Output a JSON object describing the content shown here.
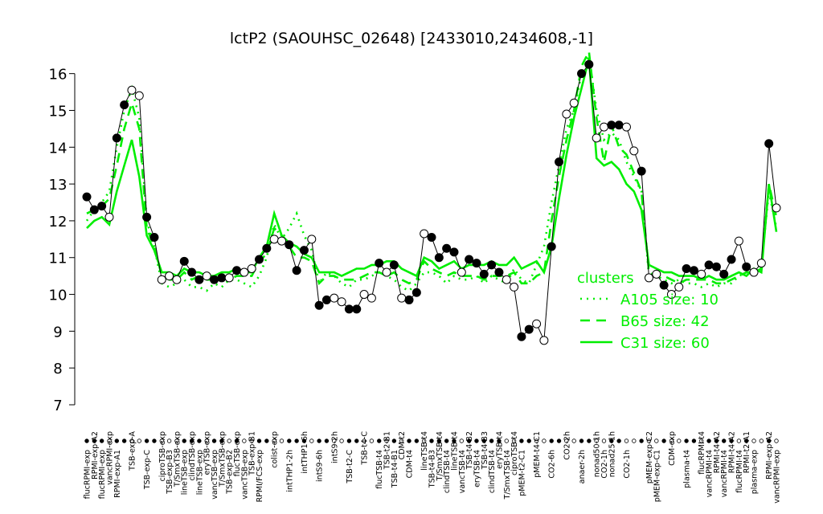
{
  "chart_data": {
    "type": "line",
    "title": "lctP2 (SAOUHSC_02648) [2433010,2434608,-1]",
    "categories": [
      "flucRPMI-exp",
      "RPMI-exp-A2",
      "flucRPMI-exp",
      "vancRPMI-exp",
      "RPMI-exp-A1",
      null,
      "TSB-exp-A",
      null,
      "TSB-exp-C",
      null,
      "ciproTSB-exp",
      "TSB-exp-B3",
      "T/SmxTSB-exp",
      "lineTSB-exp",
      "clindTSB-exp",
      "lineTSB-exp",
      "eryTSB-exp",
      "vancTSB-exp",
      "T/SmxTSB-exp",
      "TSB-exp-B2",
      "flucTSB-exp",
      "vancTSB-exp",
      "TSB-exp-B1",
      "RPMI/FCS-exp",
      null,
      "colist-exp",
      null,
      "intTHP1-2h",
      null,
      "intTHP1-6h",
      null,
      "intS9-6h",
      null,
      "intS9-2h",
      null,
      "TSB-t2-C",
      null,
      "TSB-t4-C",
      null,
      "flucTSB-t4",
      "TSB-t2-B1",
      "TSB-t4-B1",
      "CDM-t2",
      "CDM-t4",
      null,
      "lineTSB-t4",
      "TSB-t4-B3",
      "T/SmxTSB-t4",
      "clindTSB-t4",
      "lineTSB-t4",
      "vancTSB-t4",
      "TSB-t4-B2",
      "eryTSB-t4",
      "TSB-t4-B3",
      "clindTSB-t4",
      "eryTSB-t4",
      "T/SmxTSB-t4",
      "ciproTSB-t4",
      "pMEM-t2-C1",
      null,
      "pMEM-t4-C1",
      null,
      "CO2-6h",
      null,
      "CO2-2h",
      null,
      "anaer-2h",
      null,
      "nonad50-1h",
      "CO2-1h",
      "nonad25-1h",
      null,
      "CO2-1h",
      null,
      null,
      "pMEM-exp-C2",
      "pMEM-exp-C1",
      null,
      "CDM-exp",
      null,
      "plasma-t4",
      null,
      "flucRPMI-t4",
      "vancRPMI-t4",
      "RPMI-t4-A2",
      "vancRPMI-t4",
      "RPMI-t4-A2",
      "flucRPMI-t4",
      "RPMI-t2-A1",
      "plasma-exp",
      null,
      "RPMI-exp-A2",
      "vancRPMI-exp"
    ],
    "series": [
      {
        "color": "#000000",
        "linestyle": "solid",
        "values": [
          12.65,
          12.3,
          12.4,
          12.1,
          14.25,
          15.15,
          15.55,
          15.4,
          12.1,
          11.55,
          10.4,
          10.5,
          10.4,
          10.9,
          10.6,
          10.4,
          10.5,
          10.4,
          10.45,
          10.45,
          10.65,
          10.6,
          10.7,
          10.95,
          11.25,
          11.5,
          11.45,
          11.35,
          10.65,
          11.2,
          11.5,
          9.7,
          9.85,
          9.9,
          9.8,
          9.6,
          9.6,
          10.0,
          9.9,
          10.85,
          10.6,
          10.8,
          9.9,
          9.85,
          10.05,
          11.65,
          11.55,
          11.0,
          11.25,
          11.15,
          10.6,
          10.95,
          10.85,
          10.55,
          10.8,
          10.6,
          10.4,
          10.2,
          8.85,
          9.05,
          9.2,
          8.75,
          11.3,
          13.6,
          14.9,
          15.2,
          16.0,
          16.25,
          14.25,
          14.55,
          14.6,
          14.6,
          14.55,
          13.9,
          13.35,
          10.45,
          10.55,
          10.25,
          10.0,
          10.2,
          10.7,
          10.65,
          10.55,
          10.8,
          10.75,
          10.55,
          10.95,
          11.45,
          10.75,
          10.6,
          10.85,
          14.1,
          12.35
        ],
        "filled": [
          true,
          true,
          true,
          false,
          true,
          true,
          false,
          false,
          true,
          true,
          false,
          false,
          false,
          true,
          true,
          true,
          false,
          true,
          true,
          false,
          true,
          false,
          false,
          true,
          true,
          false,
          false,
          true,
          true,
          true,
          false,
          true,
          true,
          false,
          false,
          true,
          true,
          false,
          false,
          true,
          false,
          true,
          false,
          true,
          true,
          false,
          true,
          true,
          true,
          true,
          false,
          true,
          true,
          true,
          true,
          true,
          false,
          false,
          true,
          true,
          false,
          false,
          true,
          true,
          false,
          false,
          true,
          true,
          false,
          false,
          true,
          true,
          false,
          false,
          true,
          false,
          false,
          true,
          false,
          false,
          true,
          true,
          false,
          true,
          true,
          true,
          true,
          false,
          true,
          false,
          false,
          true,
          false
        ]
      },
      {
        "name": "A105 size: 10",
        "color": "#00ee00",
        "linestyle": "dotted",
        "values": [
          12.0,
          12.3,
          12.5,
          12.8,
          14.0,
          15.0,
          15.6,
          14.8,
          12.0,
          11.3,
          10.3,
          10.2,
          10.3,
          10.4,
          10.2,
          10.2,
          10.1,
          10.3,
          10.2,
          10.4,
          10.4,
          10.3,
          10.2,
          10.5,
          11.0,
          11.9,
          11.5,
          11.8,
          12.2,
          11.6,
          11.2,
          10.3,
          10.6,
          10.5,
          10.3,
          10.2,
          10.4,
          10.4,
          10.5,
          10.6,
          10.5,
          10.4,
          10.2,
          10.1,
          10.3,
          10.6,
          10.6,
          10.5,
          10.3,
          10.5,
          10.4,
          10.4,
          10.5,
          10.3,
          10.5,
          10.4,
          10.3,
          10.7,
          10.4,
          10.3,
          10.8,
          11.3,
          12.5,
          13.5,
          14.5,
          15.0,
          16.0,
          16.5,
          15.0,
          14.2,
          14.4,
          14.2,
          13.6,
          13.2,
          12.8,
          10.5,
          10.5,
          10.4,
          10.3,
          10.4,
          10.3,
          10.3,
          10.2,
          10.3,
          10.2,
          10.3,
          10.3,
          10.5,
          10.6,
          10.5,
          10.8,
          12.8,
          11.8
        ]
      },
      {
        "name": "B65 size: 42",
        "color": "#00ee00",
        "linestyle": "dashed",
        "values": [
          12.2,
          12.3,
          12.4,
          12.6,
          13.5,
          14.5,
          15.2,
          14.5,
          11.8,
          11.3,
          10.5,
          10.4,
          10.4,
          10.6,
          10.4,
          10.5,
          10.4,
          10.4,
          10.5,
          10.4,
          10.5,
          10.5,
          10.5,
          10.9,
          11.1,
          11.8,
          11.6,
          11.3,
          11.0,
          11.0,
          10.9,
          10.3,
          10.5,
          10.5,
          10.4,
          10.4,
          10.4,
          10.5,
          10.6,
          10.6,
          10.5,
          10.6,
          10.4,
          10.3,
          10.4,
          10.9,
          10.7,
          10.6,
          10.5,
          10.6,
          10.5,
          10.5,
          10.5,
          10.4,
          10.5,
          10.5,
          10.5,
          10.6,
          10.3,
          10.3,
          10.5,
          10.6,
          12.0,
          13.2,
          14.2,
          15.0,
          16.2,
          16.6,
          14.8,
          13.6,
          14.6,
          14.0,
          13.8,
          13.3,
          12.8,
          10.6,
          10.5,
          10.5,
          10.4,
          10.3,
          10.4,
          10.4,
          10.4,
          10.4,
          10.3,
          10.3,
          10.4,
          10.5,
          10.6,
          10.6,
          10.7,
          13.0,
          12.1
        ]
      },
      {
        "name": "C31 size: 60",
        "color": "#00ee00",
        "linestyle": "solid",
        "values": [
          11.8,
          12.0,
          12.1,
          11.9,
          12.8,
          13.5,
          14.2,
          13.2,
          11.6,
          11.2,
          10.6,
          10.6,
          10.5,
          10.7,
          10.6,
          10.6,
          10.5,
          10.5,
          10.6,
          10.6,
          10.7,
          10.6,
          10.6,
          11.0,
          11.3,
          12.2,
          11.6,
          11.4,
          11.3,
          11.1,
          11.0,
          10.6,
          10.6,
          10.6,
          10.5,
          10.6,
          10.7,
          10.7,
          10.8,
          10.8,
          10.9,
          10.9,
          10.7,
          10.6,
          10.5,
          11.0,
          10.9,
          10.7,
          10.8,
          10.9,
          10.7,
          10.8,
          10.8,
          10.8,
          10.9,
          10.8,
          10.8,
          11.0,
          10.7,
          10.8,
          10.9,
          10.6,
          11.3,
          12.6,
          13.8,
          14.8,
          15.6,
          16.4,
          13.7,
          13.5,
          13.6,
          13.4,
          13.0,
          12.8,
          12.3,
          10.8,
          10.7,
          10.6,
          10.6,
          10.5,
          10.5,
          10.5,
          10.4,
          10.5,
          10.4,
          10.4,
          10.5,
          10.6,
          10.5,
          10.7,
          10.6,
          13.0,
          11.7
        ]
      }
    ],
    "legend_title": "clusters",
    "legend_color": "#00ee00",
    "ylim": [
      7,
      16.8
    ],
    "yticks": [
      7,
      8,
      9,
      10,
      11,
      12,
      13,
      14,
      15,
      16
    ]
  }
}
